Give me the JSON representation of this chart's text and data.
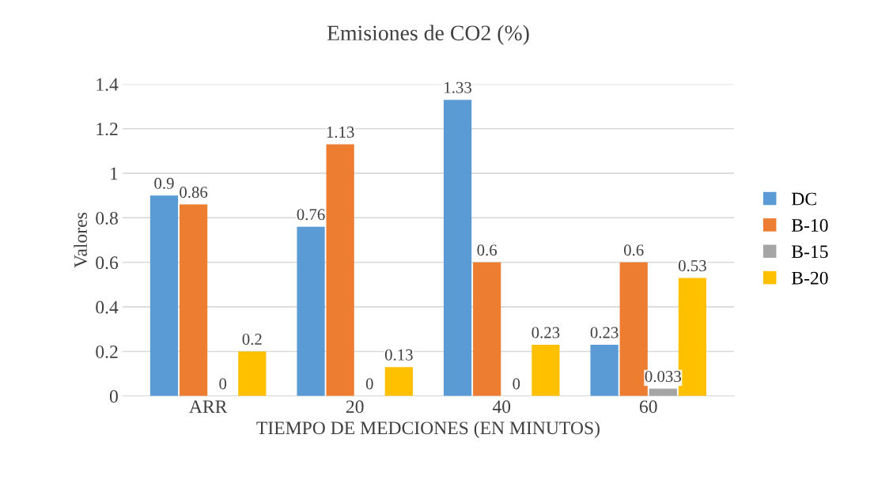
{
  "chart_data": {
    "type": "bar",
    "title": "Emisiones de CO2 (%)",
    "xlabel": "TIEMPO DE MEDCIONES (EN MINUTOS)",
    "ylabel": "Valores",
    "categories": [
      "ARR",
      "20",
      "40",
      "60"
    ],
    "series": [
      {
        "name": "DC",
        "color": "#5b9bd5",
        "values": [
          0.9,
          0.76,
          1.33,
          0.23
        ]
      },
      {
        "name": "B-10",
        "color": "#ed7d31",
        "values": [
          0.86,
          1.13,
          0.6,
          0.6
        ]
      },
      {
        "name": "B-15",
        "color": "#a5a5a5",
        "values": [
          0,
          0,
          0,
          0.033
        ]
      },
      {
        "name": "B-20",
        "color": "#ffc000",
        "values": [
          0.2,
          0.13,
          0.23,
          0.53
        ]
      }
    ],
    "ylim": [
      0,
      1.4
    ],
    "yticks": [
      0,
      0.2,
      0.4,
      0.6,
      0.8,
      1,
      1.2,
      1.4
    ],
    "grid": "y",
    "legend": "right",
    "data_labels": true
  }
}
